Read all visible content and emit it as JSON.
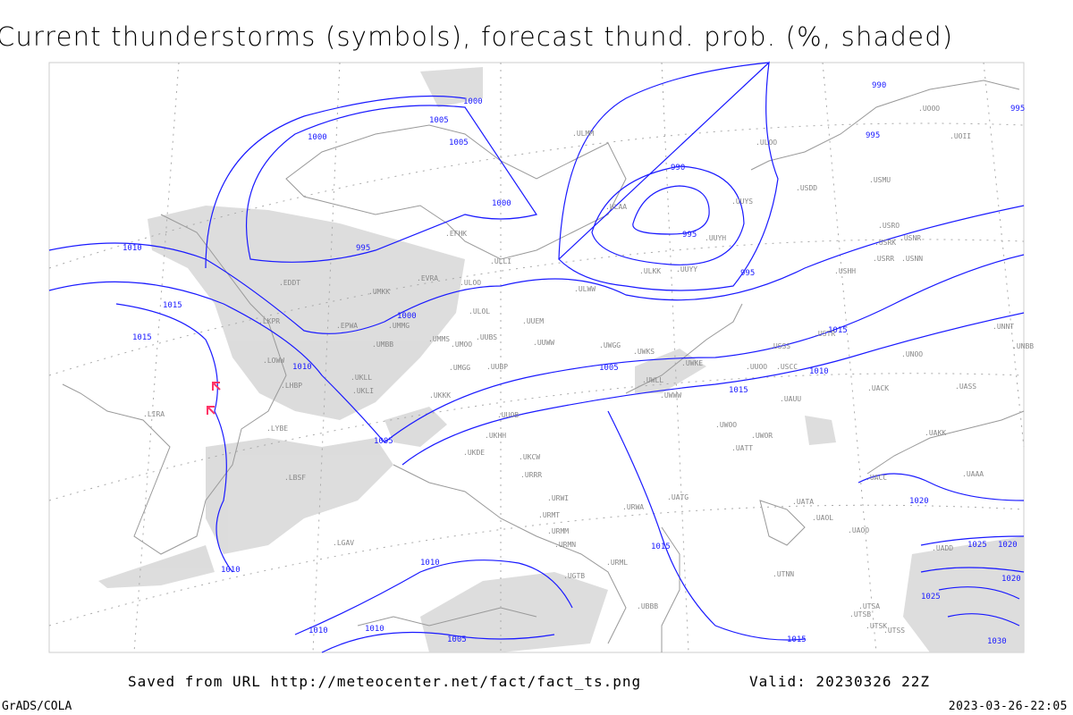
{
  "title": "Current thunderstorms (symbols), forecast thund. prob. (%, shaded)",
  "footer": {
    "saved": "Saved from URL http://meteocenter.net/fact/fact_ts.png",
    "valid": "Valid: 20230326 22Z",
    "software": "GrADS/COLA",
    "timestamp": "2023-03-26-22:05"
  },
  "colors": {
    "isobar": "#1a1aff",
    "coast": "#999999",
    "shade": "#d0d0d0",
    "thunderstorm_symbol": "#ff3366"
  },
  "isobar_labels": [
    "1000",
    "1005",
    "1005",
    "1000",
    "1000",
    "995",
    "990",
    "995",
    "995",
    "995",
    "990",
    "995",
    "1010",
    "1015",
    "1015",
    "1010",
    "1010",
    "1005",
    "1000",
    "1005",
    "1015",
    "1010",
    "1015",
    "1020",
    "1025",
    "1020",
    "1020",
    "1025",
    "1030",
    "1015",
    "1010",
    "1010",
    "1010",
    "1005",
    "1015"
  ],
  "stations": [
    "ULMM",
    "ULOO",
    "UOOO",
    "UOII",
    "ULAA",
    "UUYS",
    "UUYH",
    "ULKK",
    "UUYY",
    "ULWW",
    "USDD",
    "USMU",
    "USRO",
    "USRK",
    "USNR",
    "USRR",
    "USNN",
    "USHH",
    "EFHK",
    "EVRA",
    "ULOL",
    "ULLI",
    "ULOO",
    "UMKK",
    "EPWA",
    "UMMG",
    "UMBB",
    "LKPR",
    "LOWW",
    "LHBP",
    "UKLL",
    "UKLI",
    "UKKK",
    "UMMS",
    "UMOO",
    "UUBS",
    "UUEM",
    "UUWW",
    "UWGG",
    "UWKS",
    "UWKE",
    "UWLL",
    "UWWW",
    "UUOO",
    "UMGG",
    "UUBP",
    "UUOB",
    "UKHH",
    "UKDE",
    "UKCW",
    "URRR",
    "URWI",
    "URMT",
    "URMM",
    "URMN",
    "URWA",
    "UATG",
    "UATT",
    "UWOO",
    "UWOR",
    "USSS",
    "USCC",
    "USTR",
    "UAUU",
    "UACK",
    "UNOO",
    "UNBB",
    "UNNT",
    "UAKK",
    "UASS",
    "UAAA",
    "UACC",
    "UATA",
    "UAOL",
    "UAOO",
    "UADD",
    "UTSA",
    "UTSB",
    "UTSS",
    "UTSK",
    "UGTB",
    "UBBB",
    "UTNN",
    "URML",
    "LYBE",
    "LBSF",
    "LIRA",
    "EDDT",
    "LGAV"
  ],
  "map_legend": {
    "shading": "forecast thunderstorm probability (%)",
    "symbols": "current thunderstorms"
  }
}
